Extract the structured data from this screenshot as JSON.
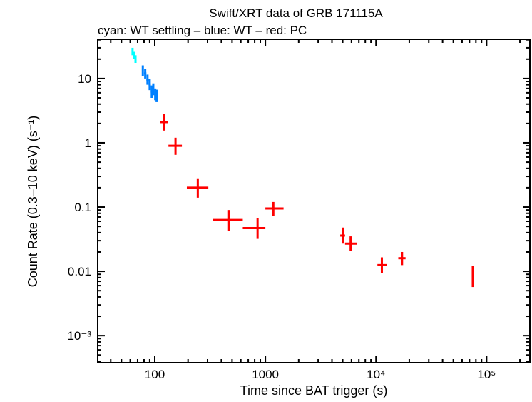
{
  "chart_data": {
    "type": "scatter",
    "title": "Swift/XRT data of GRB 171115A",
    "subtitle": "cyan: WT settling – blue: WT – red: PC",
    "xlabel": "Time since BAT trigger (s)",
    "ylabel": "Count Rate (0.3–10 keV) (s⁻¹)",
    "xscale": "log",
    "yscale": "log",
    "xlim": [
      30.5,
      246000
    ],
    "ylim": [
      0.00038,
      40.7
    ],
    "grid": false,
    "x_ticks": [
      {
        "value": 100,
        "label": "100"
      },
      {
        "value": 1000,
        "label": "1000"
      },
      {
        "value": 10000,
        "label": "10⁴"
      },
      {
        "value": 100000,
        "label": "10⁵"
      }
    ],
    "y_ticks": [
      {
        "value": 10,
        "label": "10"
      },
      {
        "value": 1,
        "label": "1"
      },
      {
        "value": 0.1,
        "label": "0.1"
      },
      {
        "value": 0.01,
        "label": "0.01"
      },
      {
        "value": 0.001,
        "label": "10⁻³"
      }
    ],
    "series": [
      {
        "color": "#00ffff",
        "points": [
          {
            "x": 63,
            "y": 26,
            "xlo": 62,
            "xhi": 64,
            "ylo": 23,
            "yhi": 30
          },
          {
            "x": 65,
            "y": 23,
            "xlo": 64,
            "xhi": 66,
            "ylo": 20,
            "yhi": 26
          },
          {
            "x": 67,
            "y": 20,
            "xlo": 66,
            "xhi": 68,
            "ylo": 17.5,
            "yhi": 23
          }
        ]
      },
      {
        "color": "#0080ff",
        "points": [
          {
            "x": 78,
            "y": 13.5,
            "xlo": 76.5,
            "xhi": 79.5,
            "ylo": 11,
            "yhi": 16
          },
          {
            "x": 82,
            "y": 12,
            "xlo": 80,
            "xhi": 84,
            "ylo": 10,
            "yhi": 14
          },
          {
            "x": 86,
            "y": 9.5,
            "xlo": 84,
            "xhi": 88,
            "ylo": 8,
            "yhi": 11.5
          },
          {
            "x": 90,
            "y": 8.1,
            "xlo": 88,
            "xhi": 92,
            "ylo": 6.6,
            "yhi": 9.8
          },
          {
            "x": 94,
            "y": 6.3,
            "xlo": 92,
            "xhi": 96,
            "ylo": 5,
            "yhi": 7.8
          },
          {
            "x": 97,
            "y": 6.8,
            "xlo": 95.5,
            "xhi": 98.5,
            "ylo": 5.5,
            "yhi": 8.4
          },
          {
            "x": 101,
            "y": 5.7,
            "xlo": 99,
            "xhi": 103,
            "ylo": 4.6,
            "yhi": 7
          },
          {
            "x": 104,
            "y": 5.5,
            "xlo": 103,
            "xhi": 106,
            "ylo": 4.3,
            "yhi": 6.7
          }
        ]
      },
      {
        "color": "#ff0000",
        "points": [
          {
            "x": 121,
            "y": 2.1,
            "xlo": 112,
            "xhi": 131,
            "ylo": 1.55,
            "yhi": 2.8
          },
          {
            "x": 154,
            "y": 0.9,
            "xlo": 133,
            "xhi": 176,
            "ylo": 0.65,
            "yhi": 1.2
          },
          {
            "x": 245,
            "y": 0.2,
            "xlo": 195,
            "xhi": 305,
            "ylo": 0.14,
            "yhi": 0.28
          },
          {
            "x": 470,
            "y": 0.063,
            "xlo": 335,
            "xhi": 625,
            "ylo": 0.043,
            "yhi": 0.09
          },
          {
            "x": 850,
            "y": 0.047,
            "xlo": 625,
            "xhi": 1000,
            "ylo": 0.032,
            "yhi": 0.068
          },
          {
            "x": 1180,
            "y": 0.095,
            "xlo": 1000,
            "xhi": 1460,
            "ylo": 0.073,
            "yhi": 0.12
          },
          {
            "x": 5000,
            "y": 0.036,
            "xlo": 4750,
            "xhi": 5250,
            "ylo": 0.027,
            "yhi": 0.048
          },
          {
            "x": 5900,
            "y": 0.027,
            "xlo": 5250,
            "xhi": 6700,
            "ylo": 0.021,
            "yhi": 0.035
          },
          {
            "x": 11300,
            "y": 0.0125,
            "xlo": 10300,
            "xhi": 12600,
            "ylo": 0.0095,
            "yhi": 0.0165
          },
          {
            "x": 17200,
            "y": 0.016,
            "xlo": 15900,
            "xhi": 18500,
            "ylo": 0.0125,
            "yhi": 0.02
          },
          {
            "x": 75000,
            "y": 0.0085,
            "xlo": 74000,
            "xhi": 76500,
            "ylo": 0.0057,
            "yhi": 0.012
          }
        ]
      }
    ]
  }
}
